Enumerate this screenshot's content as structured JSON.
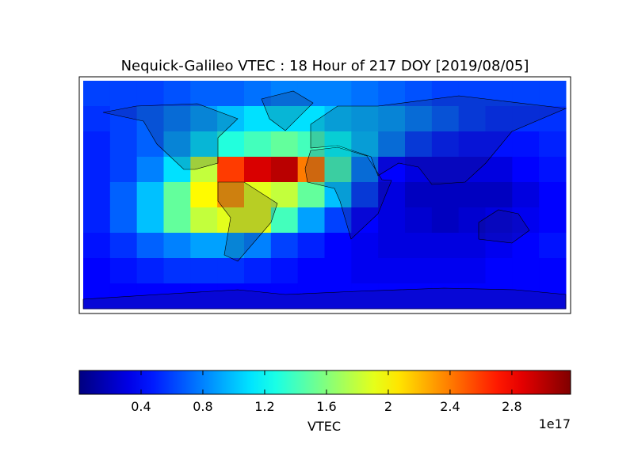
{
  "chart_data": {
    "type": "heatmap",
    "title": "Nequick-Galileo VTEC : 18 Hour of 217 DOY [2019/08/05]",
    "colormap": "jet",
    "clim": [
      0,
      3.18
    ],
    "values": [
      [
        0.6,
        0.6,
        0.6,
        0.65,
        0.7,
        0.7,
        0.75,
        0.8,
        0.8,
        0.8,
        0.75,
        0.7,
        0.65,
        0.6,
        0.6,
        0.6,
        0.6,
        0.6
      ],
      [
        0.55,
        0.6,
        0.7,
        0.8,
        0.9,
        1.0,
        1.1,
        1.1,
        1.1,
        1.0,
        0.95,
        0.9,
        0.8,
        0.7,
        0.6,
        0.55,
        0.55,
        0.55
      ],
      [
        0.5,
        0.6,
        0.7,
        0.9,
        1.1,
        1.3,
        1.4,
        1.5,
        1.4,
        1.2,
        1.0,
        0.8,
        0.6,
        0.5,
        0.45,
        0.45,
        0.45,
        0.5
      ],
      [
        0.5,
        0.6,
        0.8,
        1.1,
        1.8,
        2.6,
        2.9,
        3.0,
        2.4,
        1.4,
        0.8,
        0.4,
        0.3,
        0.3,
        0.3,
        0.3,
        0.4,
        0.45
      ],
      [
        0.5,
        0.7,
        1.0,
        1.5,
        2.0,
        2.3,
        1.9,
        1.8,
        1.5,
        1.0,
        0.6,
        0.3,
        0.2,
        0.2,
        0.2,
        0.2,
        0.3,
        0.4
      ],
      [
        0.5,
        0.7,
        1.0,
        1.5,
        1.8,
        1.9,
        1.9,
        1.4,
        0.9,
        0.6,
        0.4,
        0.3,
        0.25,
        0.2,
        0.25,
        0.3,
        0.35,
        0.4
      ],
      [
        0.45,
        0.55,
        0.7,
        0.8,
        0.9,
        0.9,
        0.8,
        0.6,
        0.5,
        0.4,
        0.35,
        0.3,
        0.3,
        0.3,
        0.3,
        0.35,
        0.4,
        0.45
      ],
      [
        0.4,
        0.45,
        0.5,
        0.55,
        0.55,
        0.55,
        0.5,
        0.45,
        0.4,
        0.4,
        0.35,
        0.35,
        0.35,
        0.35,
        0.35,
        0.4,
        0.4,
        0.4
      ],
      [
        0.4,
        0.4,
        0.4,
        0.4,
        0.4,
        0.4,
        0.4,
        0.4,
        0.4,
        0.4,
        0.4,
        0.4,
        0.4,
        0.4,
        0.4,
        0.4,
        0.4,
        0.4
      ]
    ],
    "colorbar": {
      "label": "VTEC",
      "ticks": [
        0.4,
        0.8,
        1.2,
        1.6,
        2.0,
        2.4,
        2.8
      ],
      "offset_label": "1e17"
    }
  }
}
